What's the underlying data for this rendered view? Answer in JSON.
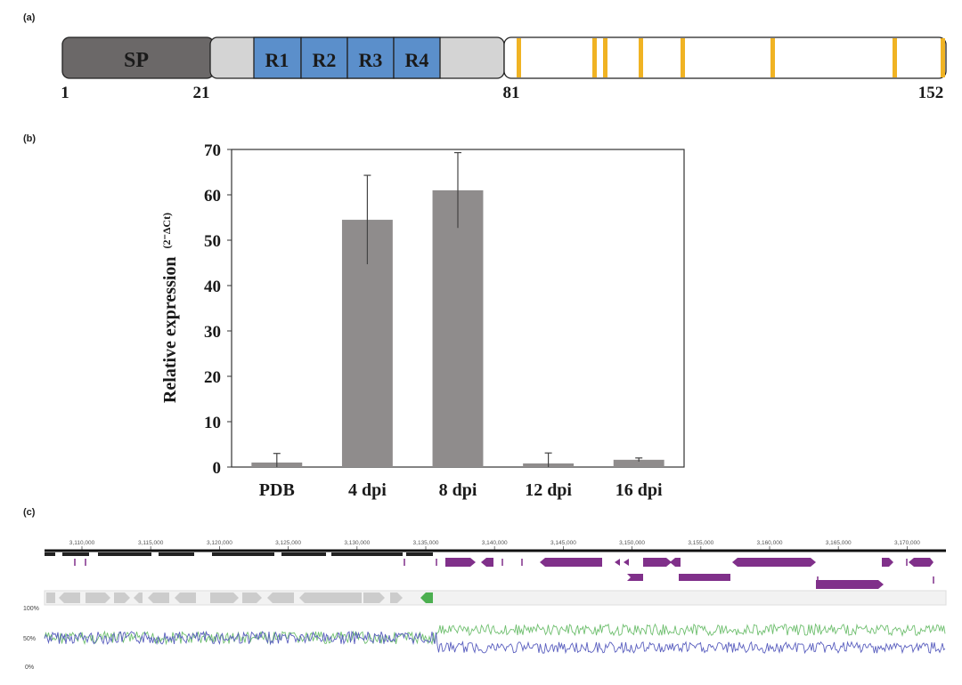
{
  "panels": {
    "a": "(a)",
    "b": "(b)",
    "c": "(c)"
  },
  "domain_map": {
    "segments": [
      {
        "label": "SP",
        "color": "#6b6868"
      },
      {
        "label": "",
        "color": "#d4d4d4"
      },
      {
        "label": "R1",
        "color": "#5b8fcb"
      },
      {
        "label": "R2",
        "color": "#5b8fcb"
      },
      {
        "label": "R3",
        "color": "#5b8fcb"
      },
      {
        "label": "R4",
        "color": "#5b8fcb"
      },
      {
        "label": "",
        "color": "#d4d4d4"
      },
      {
        "label": "",
        "color": "#ffffff"
      }
    ],
    "positions": [
      "1",
      "21",
      "81",
      "152"
    ],
    "marker_color": "#f0b323"
  },
  "chart_data": {
    "type": "bar",
    "categories": [
      "PDB",
      "4 dpi",
      "8 dpi",
      "12 dpi",
      "16 dpi"
    ],
    "values": [
      1.0,
      54.5,
      61.0,
      0.8,
      1.6
    ],
    "errors": [
      2.0,
      9.8,
      8.3,
      2.3,
      0.4
    ],
    "ylabel": "Relative expression",
    "ylabel_super": "(2⁻ΔCt)",
    "ylim": [
      0,
      70
    ],
    "yticks": [
      "0",
      "10",
      "20",
      "30",
      "40",
      "50",
      "60",
      "70"
    ],
    "bar_color": "#8f8c8c",
    "grid": false
  },
  "genome": {
    "ruler_ticks": [
      "3,110,000",
      "3,115,000",
      "3,120,000",
      "3,125,000",
      "3,130,000",
      "3,135,000",
      "3,140,000",
      "3,145,000",
      "3,150,000",
      "3,155,000",
      "3,160,000",
      "3,165,000",
      "3,170,000"
    ],
    "gc_scale": [
      "100%",
      "50%",
      "0%"
    ],
    "gene_color": "#80308a",
    "grey_gene_color": "#cccccc",
    "highlight_color": "#4caf50",
    "gc_line_green": "#6fbf6f",
    "gc_line_blue": "#5a5fbf"
  }
}
